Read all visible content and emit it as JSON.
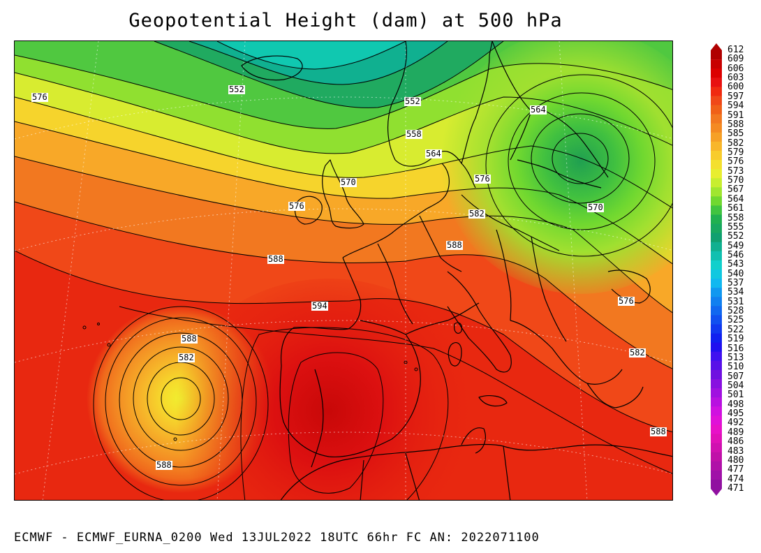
{
  "title": "Geopotential Height (dam) at 500 hPa",
  "footer": "ECMWF - ECMWF_EURNA_0200 Wed 13JUL2022 18UTC 66hr FC AN: 2022071100",
  "contour_labels": [
    "552",
    "576",
    "552",
    "558",
    "564",
    "564",
    "570",
    "576",
    "576",
    "570",
    "582",
    "588",
    "588",
    "594",
    "588",
    "582",
    "576",
    "582",
    "588",
    "588"
  ],
  "colorbar": {
    "min": 471,
    "max": 612,
    "step": 3,
    "labels": [
      "612",
      "609",
      "606",
      "603",
      "600",
      "597",
      "594",
      "591",
      "588",
      "585",
      "582",
      "579",
      "576",
      "573",
      "570",
      "567",
      "564",
      "561",
      "558",
      "555",
      "552",
      "549",
      "546",
      "543",
      "540",
      "537",
      "534",
      "531",
      "528",
      "525",
      "522",
      "519",
      "516",
      "513",
      "510",
      "507",
      "504",
      "501",
      "498",
      "495",
      "492",
      "489",
      "486",
      "483",
      "480",
      "477",
      "474",
      "471"
    ],
    "colors": [
      "#b00000",
      "#c80000",
      "#dc0000",
      "#e81010",
      "#f02a10",
      "#f04818",
      "#f06018",
      "#f27820",
      "#f48a22",
      "#f6a026",
      "#f8b62a",
      "#f8cc2c",
      "#f4e02e",
      "#e8ee30",
      "#c8ee30",
      "#a0e630",
      "#70d830",
      "#40c440",
      "#20b050",
      "#18a860",
      "#10a070",
      "#10b090",
      "#10c0b0",
      "#10d0cc",
      "#10c8e0",
      "#10b8f0",
      "#1098f0",
      "#1080f0",
      "#1068f0",
      "#1050f0",
      "#1038f0",
      "#1020f0",
      "#2010f0",
      "#4010f0",
      "#5810e8",
      "#7010e0",
      "#8810e0",
      "#a010e0",
      "#b810e0",
      "#d010e0",
      "#e010d8",
      "#e810c8",
      "#e010b8",
      "#d010b0",
      "#c010a8",
      "#b010a8",
      "#a010a8",
      "#9010a0"
    ]
  }
}
